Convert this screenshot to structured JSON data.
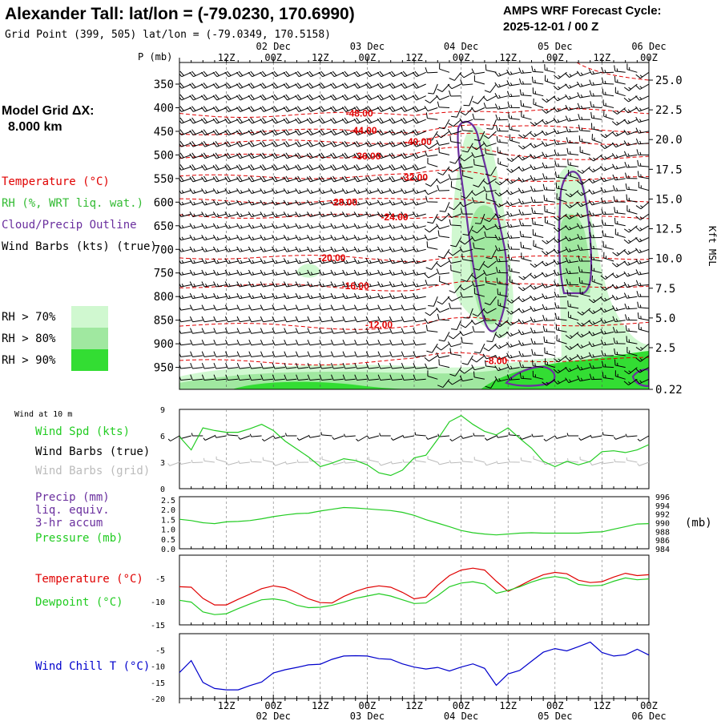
{
  "header": {
    "title": "Alexander Tall:  lat/lon = (-79.0230, 170.6990)",
    "subtitle": "Grid Point (399, 505) lat/lon = (-79.0349, 170.5158)",
    "cycle_line1": "AMPS WRF Forecast Cycle:",
    "cycle_line2": "2025-12-01 / 00  Z"
  },
  "left_labels": {
    "model_grid_line1": "Model Grid ΔX:",
    "model_grid_line2": "8.000 km",
    "temperature": "Temperature (°C)",
    "rh": "RH (%, WRT liq. wat.)",
    "cloud": "Cloud/Precip Outline",
    "wind": "Wind Barbs (kts) (true)"
  },
  "rh_legend": [
    {
      "label": "RH > 70%",
      "color": "#d0f8d0"
    },
    {
      "label": "RH > 80%",
      "color": "#a0e8a0"
    },
    {
      "label": "RH > 90%",
      "color": "#33dd33"
    }
  ],
  "colors": {
    "temperature": "#e00000",
    "rh_text": "#33bb33",
    "cloud": "#6a2f9e",
    "wind_chill": "#0000cc",
    "dewpoint": "#22cc22",
    "grid_barb": "#bbbbbb",
    "precip_text": "#6a2f9e"
  },
  "time_axis": {
    "hour_labels": [
      "12Z",
      "00Z",
      "12Z",
      "00Z",
      "12Z",
      "00Z",
      "12Z",
      "00Z",
      "12Z",
      "00Z"
    ],
    "day_labels": [
      "02 Dec",
      "03 Dec",
      "04 Dec",
      "05 Dec",
      "06 Dec"
    ],
    "start_hour": 0,
    "end_hour": 120
  },
  "chart_data": [
    {
      "type": "heatmap",
      "name": "time-height cross section",
      "y_label": "P (mb)",
      "y_axis_right_label": "Kft MSL",
      "pressure_ticks": [
        350,
        400,
        450,
        500,
        550,
        600,
        650,
        700,
        750,
        800,
        850,
        900,
        950
      ],
      "height_ticks_kft": [
        "25.0",
        "22.5",
        "20.0",
        "17.5",
        "15.0",
        "12.5",
        "10.0",
        "7.5",
        "5.0",
        "2.5",
        "0.22"
      ],
      "temperature_contour_labels": [
        {
          "label": "-48.00",
          "hour": 46,
          "p": 412
        },
        {
          "label": "-44.00",
          "hour": 47,
          "p": 448
        },
        {
          "label": "-40.00",
          "hour": 61,
          "p": 472
        },
        {
          "label": "-36.00",
          "hour": 48,
          "p": 503
        },
        {
          "label": "-32.00",
          "hour": 60,
          "p": 548
        },
        {
          "label": "-28.00",
          "hour": 42,
          "p": 600
        },
        {
          "label": "-24.00",
          "hour": 55,
          "p": 632
        },
        {
          "label": "-20.00",
          "hour": 39,
          "p": 718
        },
        {
          "label": "-16.00",
          "hour": 45,
          "p": 778
        },
        {
          "label": "-12.00",
          "hour": 51,
          "p": 860
        },
        {
          "label": "-8.00",
          "hour": 81,
          "p": 936
        }
      ],
      "temperature_contour_levels": [
        -48,
        -44,
        -40,
        -36,
        -32,
        -28,
        -24,
        -20,
        -16,
        -12,
        -8
      ],
      "rh_thresholds": [
        70,
        80,
        90
      ]
    },
    {
      "type": "line",
      "name": "Wind at 10 m",
      "title": "Wind at 10 m",
      "series_labels": {
        "speed": "Wind Spd (kts)",
        "barbs_true": "Wind Barbs (true)",
        "barbs_grid": "Wind Barbs (grid)"
      },
      "ylim": [
        0,
        9
      ],
      "y_ticks": [
        0,
        3,
        6,
        9
      ],
      "x_hours": [
        0,
        3,
        6,
        9,
        12,
        15,
        18,
        21,
        24,
        27,
        30,
        33,
        36,
        39,
        42,
        45,
        48,
        51,
        54,
        57,
        60,
        63,
        66,
        69,
        72,
        75,
        78,
        81,
        84,
        87,
        90,
        93,
        96,
        99,
        102,
        105,
        108,
        111,
        114,
        117,
        120
      ],
      "speed_kts": [
        5.9,
        4.4,
        6.9,
        6.6,
        6.4,
        6.4,
        6.8,
        7.3,
        6.6,
        5.4,
        4.5,
        3.6,
        2.5,
        2.9,
        3.4,
        3.2,
        2.7,
        1.8,
        1.5,
        2.1,
        3.5,
        3.8,
        5.6,
        7.6,
        8.3,
        7.3,
        6.5,
        6.1,
        6.9,
        5.7,
        4.6,
        3.1,
        2.5,
        3.1,
        2.7,
        3.1,
        4.2,
        4.3,
        4.1,
        4.4,
        5.0
      ]
    },
    {
      "type": "line",
      "name": "Precip and Pressure",
      "series_labels": {
        "precip": "Precip (mm)",
        "precip_sub1": "liq. equiv.",
        "precip_sub2": "3-hr accum",
        "pressure": "Pressure (mb)"
      },
      "right_unit": "(mb)",
      "precip_ticks": [
        "0.0",
        "0.5",
        "1.0",
        "1.5",
        "2.0",
        "2.5"
      ],
      "precip_ylim": [
        0,
        2.5
      ],
      "pressure_ticks": [
        "984",
        "986",
        "988",
        "990",
        "992",
        "994",
        "996"
      ],
      "pressure_ylim": [
        984,
        996
      ],
      "x_hours": [
        0,
        3,
        6,
        9,
        12,
        15,
        18,
        21,
        24,
        27,
        30,
        33,
        36,
        39,
        42,
        45,
        48,
        51,
        54,
        57,
        60,
        63,
        66,
        69,
        72,
        75,
        78,
        81,
        84,
        87,
        90,
        93,
        96,
        99,
        102,
        105,
        108,
        111,
        114,
        117,
        120
      ],
      "pressure_mb": [
        990.8,
        990.5,
        990.0,
        989.8,
        990.2,
        990.3,
        990.5,
        990.9,
        991.4,
        991.8,
        992.1,
        992.2,
        992.7,
        993.1,
        993.5,
        993.4,
        993.2,
        993.0,
        992.8,
        992.4,
        991.7,
        990.7,
        989.9,
        989.1,
        988.2,
        987.7,
        987.4,
        987.2,
        987.4,
        987.6,
        987.7,
        987.6,
        987.6,
        987.6,
        987.6,
        987.8,
        987.9,
        988.5,
        989.1,
        989.7,
        989.8
      ],
      "precip_mm": [
        0,
        0,
        0,
        0,
        0,
        0,
        0,
        0,
        0,
        0,
        0,
        0,
        0,
        0,
        0,
        0,
        0,
        0,
        0,
        0,
        0,
        0,
        0,
        0,
        0,
        0,
        0,
        0,
        0,
        0,
        0,
        0,
        0,
        0,
        0,
        0,
        0,
        0,
        0,
        0,
        0
      ]
    },
    {
      "type": "line",
      "name": "Temperature and Dewpoint",
      "series_labels": {
        "temperature": "Temperature (°C)",
        "dewpoint": "Dewpoint (°C)"
      },
      "ylim": [
        -15,
        0
      ],
      "y_ticks": [
        "-5",
        "-10",
        "-15"
      ],
      "x_hours": [
        0,
        3,
        6,
        9,
        12,
        15,
        18,
        21,
        24,
        27,
        30,
        33,
        36,
        39,
        42,
        45,
        48,
        51,
        54,
        57,
        60,
        63,
        66,
        69,
        72,
        75,
        78,
        81,
        84,
        87,
        90,
        93,
        96,
        99,
        102,
        105,
        108,
        111,
        114,
        117,
        120
      ],
      "temperature_c": [
        -6.8,
        -6.9,
        -9.3,
        -10.7,
        -10.7,
        -9.5,
        -8.4,
        -7.2,
        -6.6,
        -7.0,
        -8.1,
        -9.4,
        -10.2,
        -10.3,
        -8.9,
        -7.8,
        -7.0,
        -6.6,
        -6.9,
        -8.0,
        -9.4,
        -9.0,
        -6.5,
        -4.4,
        -3.2,
        -2.8,
        -3.2,
        -5.6,
        -7.8,
        -6.6,
        -5.3,
        -4.2,
        -3.7,
        -4.0,
        -5.4,
        -5.9,
        -5.7,
        -4.7,
        -3.9,
        -4.4,
        -4.2
      ],
      "dewpoint_c": [
        -9.7,
        -10.1,
        -12.2,
        -12.8,
        -12.6,
        -11.5,
        -10.5,
        -9.6,
        -9.4,
        -9.8,
        -10.8,
        -11.3,
        -11.2,
        -10.8,
        -10.1,
        -9.3,
        -8.8,
        -8.3,
        -8.8,
        -9.6,
        -10.4,
        -10.3,
        -8.7,
        -6.8,
        -6.0,
        -5.7,
        -6.2,
        -8.2,
        -7.6,
        -6.8,
        -5.8,
        -5.0,
        -4.6,
        -5.0,
        -6.3,
        -6.6,
        -6.5,
        -5.6,
        -4.9,
        -5.3,
        -5.1
      ]
    },
    {
      "type": "line",
      "name": "Wind Chill",
      "series_labels": {
        "wind_chill": "Wind Chill T (°C)"
      },
      "ylim": [
        -20,
        0
      ],
      "y_ticks": [
        "-5",
        "-10",
        "-15",
        "-20"
      ],
      "x_hours": [
        0,
        3,
        6,
        9,
        12,
        15,
        18,
        21,
        24,
        27,
        30,
        33,
        36,
        39,
        42,
        45,
        48,
        51,
        54,
        57,
        60,
        63,
        66,
        69,
        72,
        75,
        78,
        81,
        84,
        87,
        90,
        93,
        96,
        99,
        102,
        105,
        108,
        111,
        114,
        117,
        120
      ],
      "wind_chill_c": [
        -12.0,
        -8.3,
        -15.0,
        -16.9,
        -17.3,
        -17.3,
        -16.0,
        -14.9,
        -12.1,
        -11.1,
        -10.4,
        -9.6,
        -9.4,
        -7.9,
        -6.9,
        -6.8,
        -6.9,
        -7.7,
        -7.9,
        -9.3,
        -10.3,
        -10.9,
        -10.4,
        -11.5,
        -10.3,
        -9.3,
        -10.7,
        -15.9,
        -12.4,
        -11.3,
        -8.5,
        -5.7,
        -4.6,
        -5.3,
        -4.0,
        -2.6,
        -5.8,
        -6.9,
        -6.5,
        -4.8,
        -6.6
      ]
    }
  ]
}
